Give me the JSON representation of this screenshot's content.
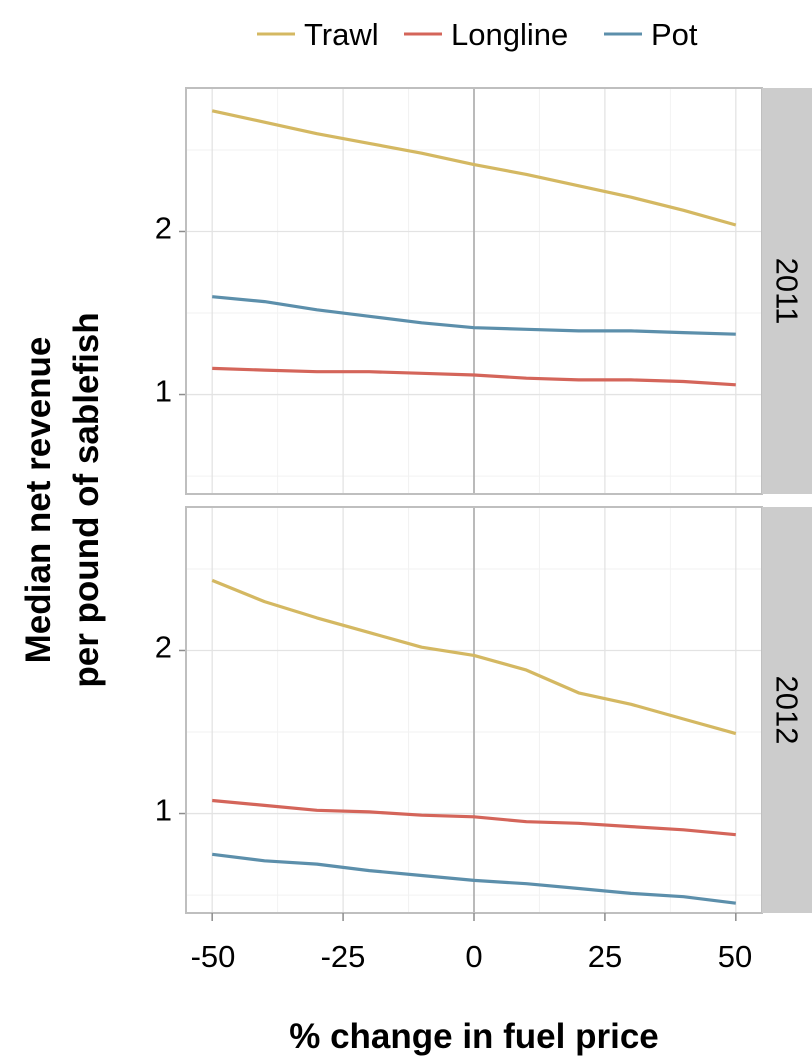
{
  "chart_data": {
    "type": "line",
    "xlabel": "% change in fuel price",
    "ylabel_lines": [
      "Median net revenue",
      "per pound of sablefish"
    ],
    "x": [
      -50,
      -40,
      -30,
      -20,
      -10,
      0,
      10,
      20,
      30,
      40,
      50
    ],
    "x_ticks": [
      -50,
      -25,
      0,
      25,
      50
    ],
    "x_tick_labels": [
      "-50",
      "-25",
      "0",
      "25",
      "50"
    ],
    "xlim": [
      -55,
      55
    ],
    "y_ticks": [
      1,
      2
    ],
    "y_tick_labels": [
      "1",
      "2"
    ],
    "ylim": [
      0.39,
      2.88
    ],
    "grid": true,
    "legend_position": "top",
    "legend": [
      {
        "name": "Trawl",
        "color": "#d4b862"
      },
      {
        "name": "Longline",
        "color": "#d4655a"
      },
      {
        "name": "Pot",
        "color": "#5c8fab"
      }
    ],
    "panels": [
      {
        "label": "2011",
        "series": [
          {
            "name": "Trawl",
            "values": [
              2.74,
              2.67,
              2.6,
              2.54,
              2.48,
              2.41,
              2.35,
              2.28,
              2.21,
              2.13,
              2.04
            ]
          },
          {
            "name": "Longline",
            "values": [
              1.16,
              1.15,
              1.14,
              1.14,
              1.13,
              1.12,
              1.1,
              1.09,
              1.09,
              1.08,
              1.06
            ]
          },
          {
            "name": "Pot",
            "values": [
              1.6,
              1.57,
              1.52,
              1.48,
              1.44,
              1.41,
              1.4,
              1.39,
              1.39,
              1.38,
              1.37
            ]
          }
        ]
      },
      {
        "label": "2012",
        "series": [
          {
            "name": "Trawl",
            "values": [
              2.43,
              2.3,
              2.2,
              2.11,
              2.02,
              1.97,
              1.88,
              1.74,
              1.67,
              1.58,
              1.49
            ]
          },
          {
            "name": "Longline",
            "values": [
              1.08,
              1.05,
              1.02,
              1.01,
              0.99,
              0.98,
              0.95,
              0.94,
              0.92,
              0.9,
              0.87
            ]
          },
          {
            "name": "Pot",
            "values": [
              0.75,
              0.71,
              0.69,
              0.65,
              0.62,
              0.59,
              0.57,
              0.54,
              0.51,
              0.49,
              0.45
            ]
          }
        ]
      }
    ]
  }
}
